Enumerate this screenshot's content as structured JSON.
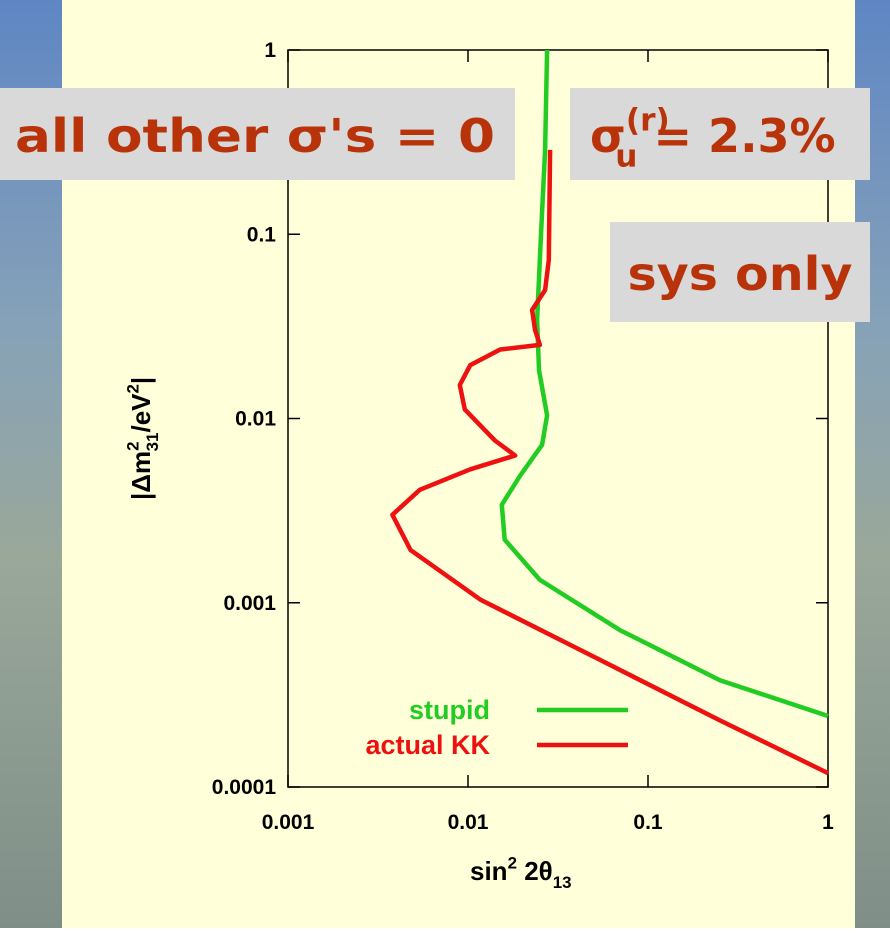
{
  "chart_data": {
    "type": "line",
    "xlabel": [
      {
        "t": "sin"
      },
      {
        "t": "2",
        "pos": "sup"
      },
      {
        "t": " 2θ"
      },
      {
        "t": "13",
        "pos": "sub"
      }
    ],
    "ylabel": [
      {
        "t": "|Δm"
      },
      {
        "t": "2",
        "pos": "sup"
      },
      {
        "t": "31",
        "pos": "sub"
      },
      {
        "t": "/eV"
      },
      {
        "t": "2",
        "pos": "sup"
      },
      {
        "t": "|"
      }
    ],
    "xscale": "log",
    "yscale": "log",
    "xlim": [
      0.001,
      1
    ],
    "ylim": [
      0.0001,
      1
    ],
    "xticks": [
      0.001,
      0.01,
      0.1,
      1
    ],
    "yticks": [
      0.0001,
      0.001,
      0.01,
      0.1,
      1
    ],
    "legend": "lower center",
    "series": [
      {
        "name": "stupid",
        "color": "#22cc22",
        "x": [
          0.0275,
          0.0268,
          0.0255,
          0.0242,
          0.0248,
          0.0275,
          0.0258,
          0.0195,
          0.0154,
          0.016,
          0.0251,
          0.07,
          0.251,
          1
        ],
        "values": [
          1,
          0.287,
          0.105,
          0.0343,
          0.0183,
          0.0104,
          0.0072,
          0.0049,
          0.0034,
          0.0022,
          0.00133,
          0.00071,
          0.00038,
          0.000243
        ]
      },
      {
        "name": "actual KK",
        "color": "#ee1111",
        "x": [
          0.0286,
          0.0281,
          0.0268,
          0.0227,
          0.0236,
          0.0251,
          0.0151,
          0.0103,
          0.009,
          0.0096,
          0.0141,
          0.0183,
          0.0103,
          0.0054,
          0.0038,
          0.0048,
          0.0117,
          0.054,
          0.251,
          1
        ],
        "values": [
          0.287,
          0.0725,
          0.0498,
          0.0388,
          0.0302,
          0.0251,
          0.0237,
          0.0195,
          0.0152,
          0.0112,
          0.0076,
          0.0063,
          0.0053,
          0.0041,
          0.003,
          0.00193,
          0.00104,
          0.00049,
          0.00023,
          0.000119
        ]
      }
    ],
    "annotations": [
      {
        "parts": [
          {
            "t": "all other σ's = 0"
          }
        ]
      },
      {
        "parts": [
          {
            "t": "σ"
          },
          {
            "t": "(r)",
            "pos": "sup"
          },
          {
            "t": "u",
            "pos": "sub"
          },
          {
            "t": " = 2.3%"
          }
        ]
      },
      {
        "parts": [
          {
            "t": "sys only"
          }
        ]
      }
    ]
  }
}
